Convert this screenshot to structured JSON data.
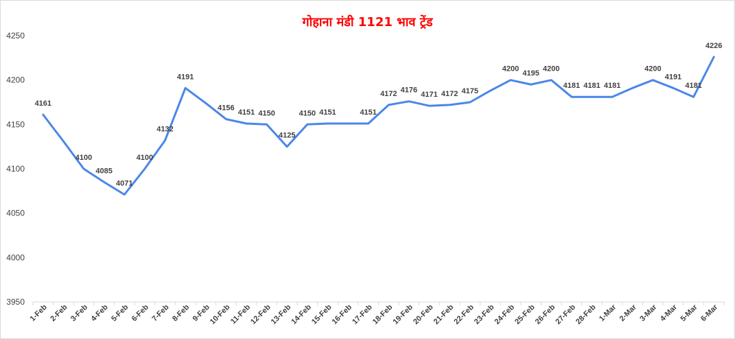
{
  "chart_data": {
    "type": "line",
    "title": "गोहाना मंडी 1121 भाव ट्रेंड",
    "categories": [
      "1-Feb",
      "2-Feb",
      "3-Feb",
      "4-Feb",
      "5-Feb",
      "6-Feb",
      "7-Feb",
      "8-Feb",
      "9-Feb",
      "10-Feb",
      "11-Feb",
      "12-Feb",
      "13-Feb",
      "14-Feb",
      "15-Feb",
      "16-Feb",
      "17-Feb",
      "18-Feb",
      "19-Feb",
      "20-Feb",
      "21-Feb",
      "22-Feb",
      "23-Feb",
      "24-Feb",
      "25-Feb",
      "26-Feb",
      "27-Feb",
      "28-Feb",
      "1-Mar",
      "2-Mar",
      "3-Mar",
      "4-Mar",
      "5-Mar",
      "6-Mar"
    ],
    "values": [
      4161,
      4131,
      4100,
      4085,
      4071,
      4100,
      4132,
      4191,
      4174,
      4156,
      4151,
      4150,
      4125,
      4150,
      4151,
      4151,
      4151,
      4172,
      4176,
      4171,
      4172,
      4175,
      4188,
      4200,
      4195,
      4200,
      4181,
      4181,
      4181,
      4191,
      4200,
      4191,
      4181,
      4226
    ],
    "labeled_indices": [
      0,
      2,
      3,
      4,
      5,
      6,
      7,
      9,
      10,
      11,
      12,
      13,
      14,
      16,
      17,
      18,
      19,
      20,
      21,
      23,
      24,
      25,
      26,
      27,
      28,
      30,
      31,
      32,
      33
    ],
    "ylim": [
      3950,
      4250
    ],
    "yticks": [
      3950,
      4000,
      4050,
      4100,
      4150,
      4200,
      4250
    ],
    "grid": false,
    "legend": "none",
    "line_color": "#4a86e8",
    "title_color": "#ff0000"
  }
}
